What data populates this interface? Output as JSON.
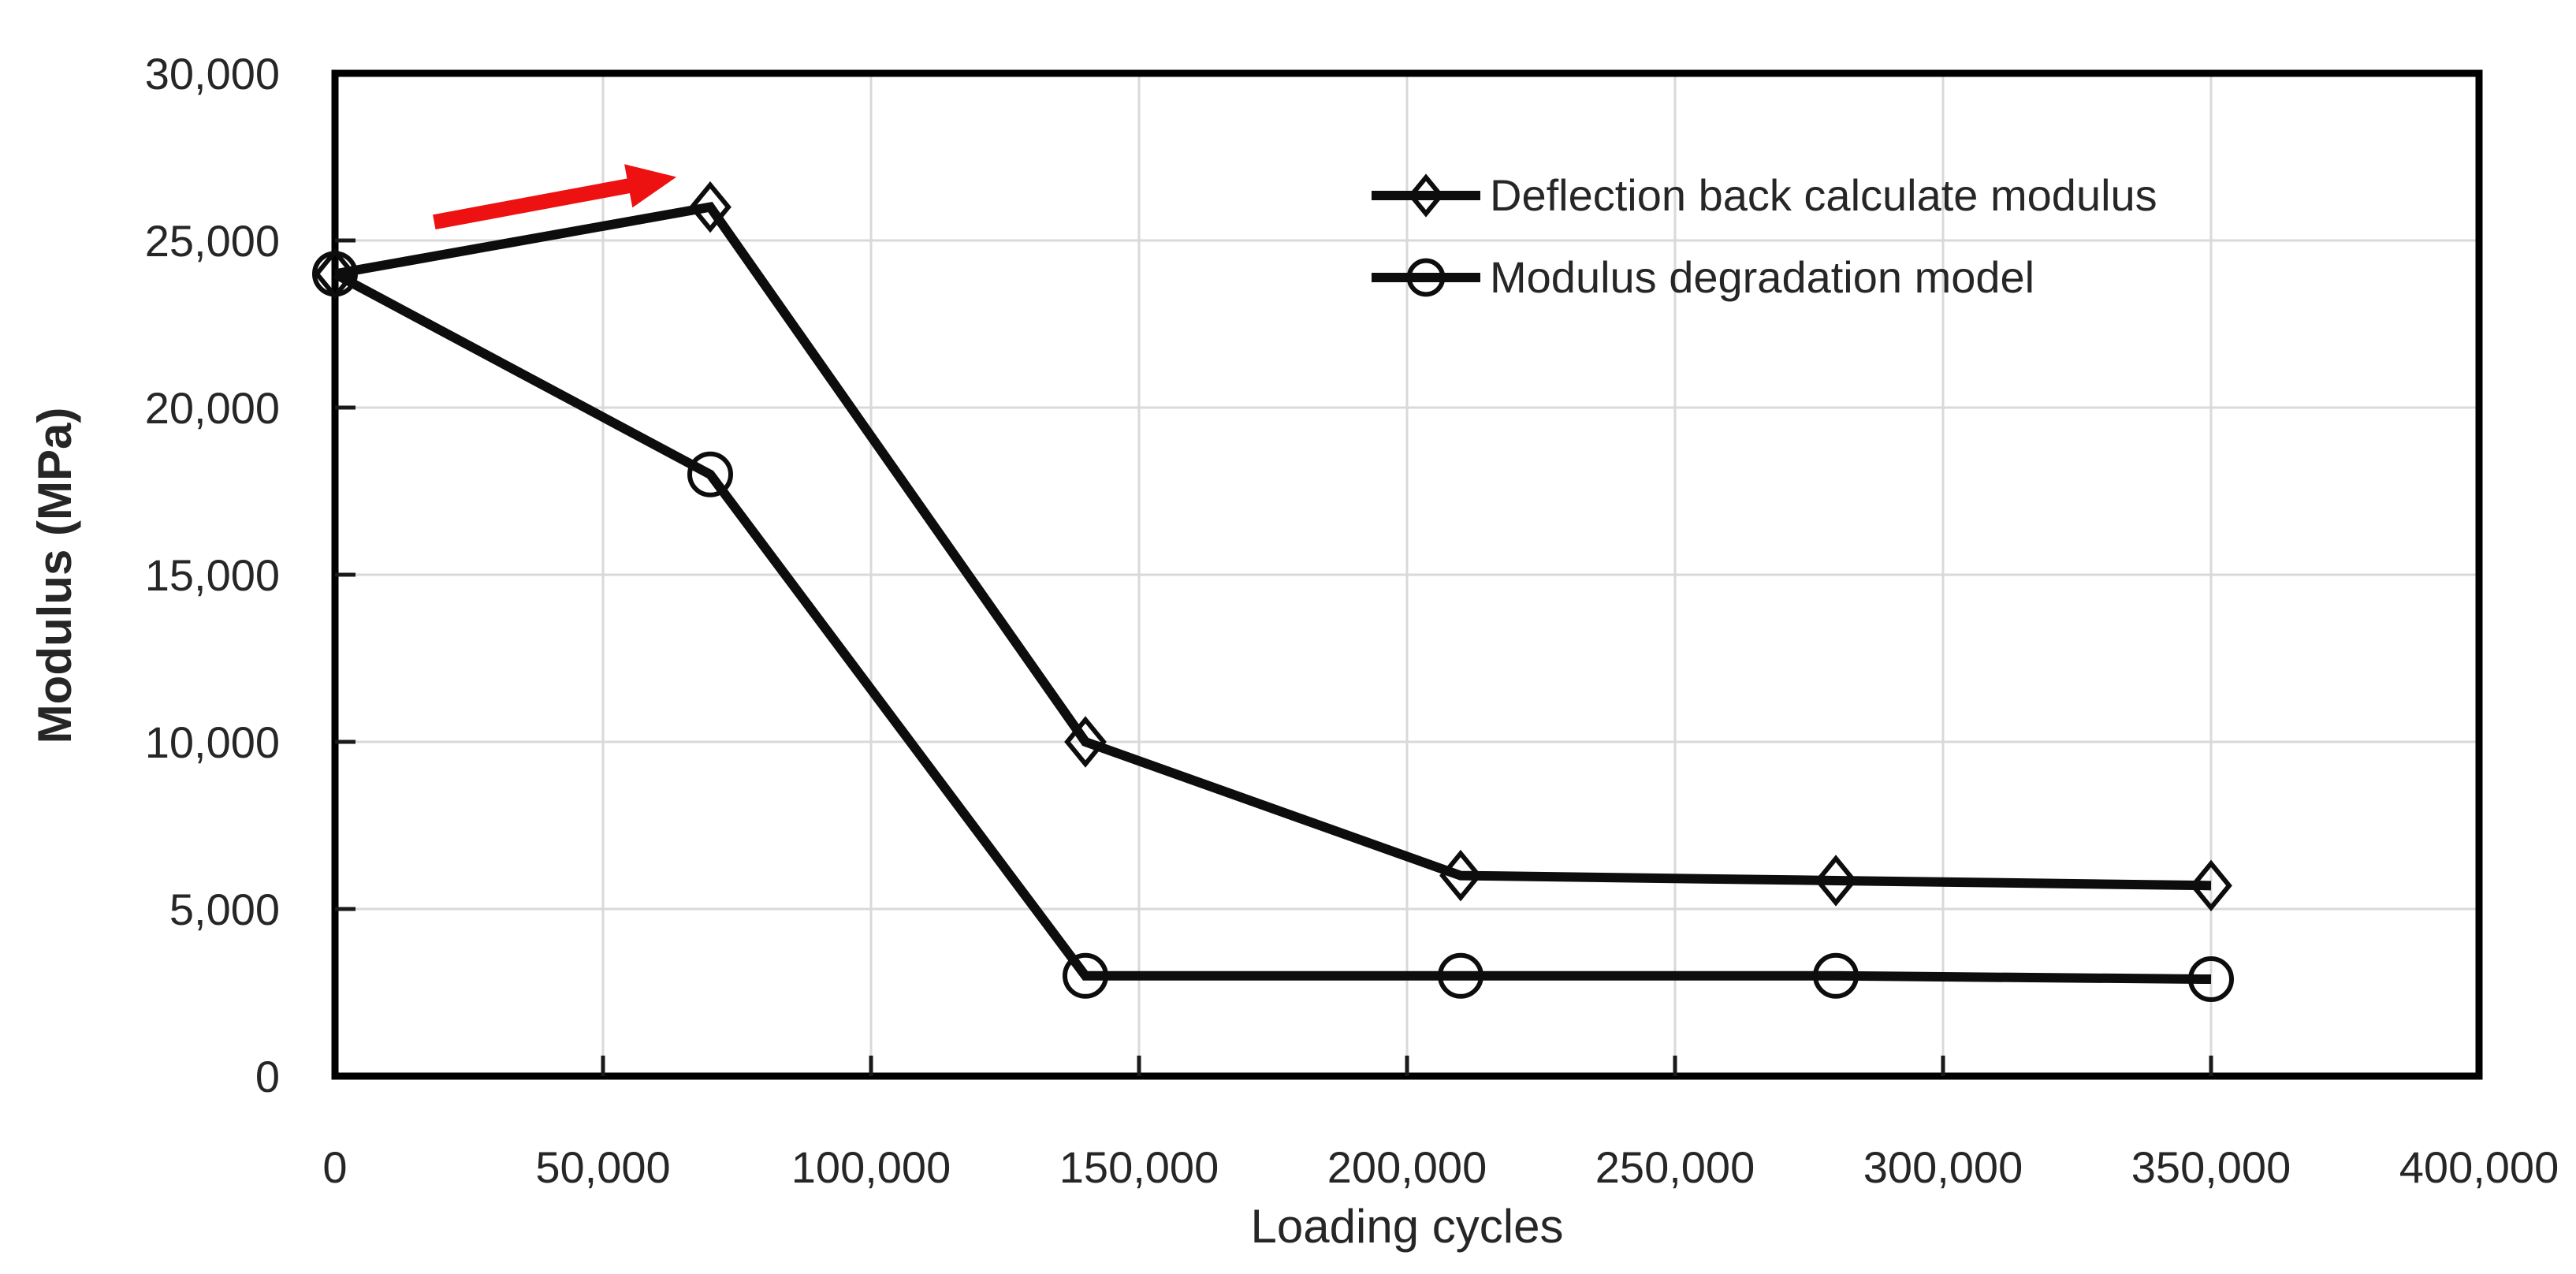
{
  "chart_data": {
    "type": "line",
    "title": "",
    "xlabel": "Loading cycles",
    "ylabel": "Modulus (MPa)",
    "xlim": [
      0,
      400000
    ],
    "ylim": [
      0,
      30000
    ],
    "x_ticks": [
      0,
      50000,
      100000,
      150000,
      200000,
      250000,
      300000,
      350000,
      400000
    ],
    "y_ticks": [
      0,
      5000,
      10000,
      15000,
      20000,
      25000,
      30000
    ],
    "grid": true,
    "legend_position": "upper-right-inside",
    "x": [
      0,
      70000,
      140000,
      210000,
      280000,
      350000
    ],
    "series": [
      {
        "name": "Deflection back calculate modulus",
        "marker": "diamond",
        "values": [
          24000,
          26000,
          10000,
          6000,
          5850,
          5700
        ]
      },
      {
        "name": "Modulus degradation model",
        "marker": "circle",
        "values": [
          24000,
          18000,
          3000,
          3000,
          3000,
          2900
        ]
      }
    ],
    "annotation": {
      "type": "arrow",
      "description": "red arrow pointing up-right toward peak",
      "from_xy": [
        18500,
        25550
      ],
      "to_xy": [
        63700,
        26900
      ]
    }
  },
  "colors": {
    "series_line": "#0d0d0d",
    "marker_stroke": "#0d0d0d",
    "gridline": "#d9d9d9",
    "frame": "#000000",
    "tick": "#1a1a1a",
    "text": "#262626",
    "arrow": "#ee1111",
    "background": "#ffffff"
  }
}
